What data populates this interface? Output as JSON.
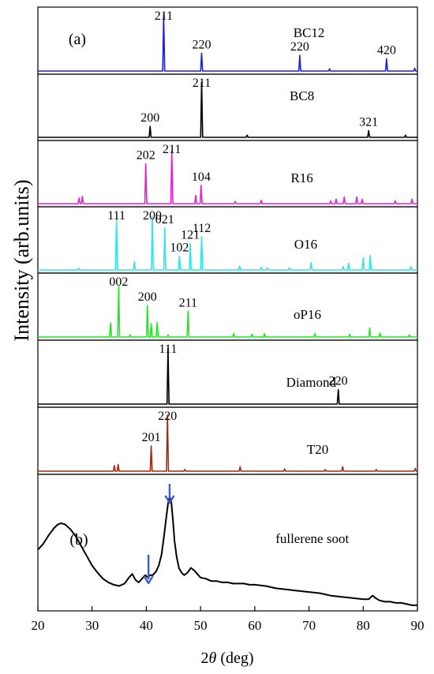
{
  "chart_data": {
    "type": "line",
    "xlabel": "2θ (deg)",
    "xlabel_prefix": "2",
    "xlabel_theta": "θ",
    "xlabel_suffix": " (deg)",
    "ylabel": "Intensity (arb.units)",
    "xlim": [
      20,
      90
    ],
    "xticks": [
      "20",
      "30",
      "40",
      "50",
      "60",
      "70",
      "80",
      "90"
    ],
    "panel_labels": [
      "(a)",
      "(b)"
    ],
    "series": [
      {
        "name": "BC12",
        "color": "#1f1fd6",
        "peaks": [
          [
            43.2,
            1.0
          ],
          [
            50.2,
            0.32
          ],
          [
            68.3,
            0.28
          ],
          [
            73.8,
            0.04
          ],
          [
            84.3,
            0.22
          ],
          [
            89.5,
            0.05
          ]
        ],
        "labels": [
          {
            "text": "211",
            "x": 43.2,
            "y": 1.0
          },
          {
            "text": "220",
            "x": 50.2,
            "y": 0.32
          },
          {
            "text": "220",
            "x": 68.3,
            "y": 0.28
          },
          {
            "text": "420",
            "x": 84.3,
            "y": 0.22
          }
        ]
      },
      {
        "name": "BC8",
        "color": "#000000",
        "peaks": [
          [
            40.7,
            0.2
          ],
          [
            50.2,
            1.0
          ],
          [
            58.6,
            0.04
          ],
          [
            81.0,
            0.12
          ],
          [
            87.8,
            0.04
          ]
        ],
        "labels": [
          {
            "text": "200",
            "x": 40.7,
            "y": 0.2
          },
          {
            "text": "211",
            "x": 50.2,
            "y": 1.0
          },
          {
            "text": "321",
            "x": 81.0,
            "y": 0.12
          }
        ]
      },
      {
        "name": "R16",
        "color": "#e81ed8",
        "peaks": [
          [
            27.6,
            0.1
          ],
          [
            28.2,
            0.13
          ],
          [
            39.9,
            0.72
          ],
          [
            44.7,
            0.96
          ],
          [
            49.1,
            0.15
          ],
          [
            50.1,
            0.33
          ],
          [
            56.4,
            0.04
          ],
          [
            61.2,
            0.06
          ],
          [
            74.0,
            0.05
          ],
          [
            75.0,
            0.08
          ],
          [
            76.5,
            0.12
          ],
          [
            78.8,
            0.12
          ],
          [
            79.8,
            0.08
          ],
          [
            85.9,
            0.05
          ],
          [
            89.0,
            0.08
          ]
        ],
        "labels": [
          {
            "text": "202",
            "x": 39.9,
            "y": 0.72
          },
          {
            "text": "211",
            "x": 44.7,
            "y": 0.96
          },
          {
            "text": "104",
            "x": 50.1,
            "y": 0.33
          }
        ]
      },
      {
        "name": "O16",
        "color": "#2ee6e6",
        "peaks": [
          [
            27.5,
            0.03
          ],
          [
            34.5,
            0.91
          ],
          [
            37.8,
            0.15
          ],
          [
            41.1,
            0.96
          ],
          [
            43.4,
            0.76
          ],
          [
            46.1,
            0.25
          ],
          [
            48.1,
            0.48
          ],
          [
            50.2,
            0.6
          ],
          [
            57.2,
            0.07
          ],
          [
            61.2,
            0.05
          ],
          [
            62.3,
            0.04
          ],
          [
            66.4,
            0.04
          ],
          [
            70.4,
            0.13
          ],
          [
            76.3,
            0.06
          ],
          [
            77.3,
            0.12
          ],
          [
            80.0,
            0.22
          ],
          [
            81.3,
            0.26
          ],
          [
            88.8,
            0.06
          ]
        ],
        "labels": [
          {
            "text": "111",
            "x": 34.5,
            "y": 0.91
          },
          {
            "text": "200",
            "x": 41.1,
            "y": 0.96
          },
          {
            "text": "021",
            "x": 43.4,
            "y": 0.76
          },
          {
            "text": "102",
            "x": 46.1,
            "y": 0.25
          },
          {
            "text": "121",
            "x": 48.1,
            "y": 0.48
          },
          {
            "text": "112",
            "x": 50.2,
            "y": 0.6
          }
        ]
      },
      {
        "name": "oP16",
        "color": "#1fe81f",
        "peaks": [
          [
            33.4,
            0.25
          ],
          [
            34.9,
            0.9
          ],
          [
            37.0,
            0.04
          ],
          [
            40.2,
            0.56
          ],
          [
            40.9,
            0.24
          ],
          [
            42.0,
            0.26
          ],
          [
            44.0,
            0.04
          ],
          [
            47.7,
            0.46
          ],
          [
            56.1,
            0.06
          ],
          [
            59.5,
            0.05
          ],
          [
            61.8,
            0.06
          ],
          [
            71.1,
            0.06
          ],
          [
            77.5,
            0.05
          ],
          [
            81.2,
            0.16
          ],
          [
            83.1,
            0.07
          ],
          [
            88.5,
            0.04
          ]
        ],
        "labels": [
          {
            "text": "002",
            "x": 34.9,
            "y": 0.9
          },
          {
            "text": "200",
            "x": 40.2,
            "y": 0.56
          },
          {
            "text": "211",
            "x": 47.7,
            "y": 0.46
          }
        ]
      },
      {
        "name": "Diamond",
        "color": "#000000",
        "peaks": [
          [
            44.0,
            1.0
          ],
          [
            75.4,
            0.26
          ]
        ],
        "labels": [
          {
            "text": "111",
            "x": 44.0,
            "y": 1.0
          },
          {
            "text": "220",
            "x": 75.4,
            "y": 0.26
          }
        ]
      },
      {
        "name": "T20",
        "color": "#a52a10",
        "peaks": [
          [
            34.1,
            0.1
          ],
          [
            34.8,
            0.12
          ],
          [
            40.9,
            0.45
          ],
          [
            43.9,
            1.0
          ],
          [
            47.1,
            0.03
          ],
          [
            57.3,
            0.08
          ],
          [
            65.5,
            0.04
          ],
          [
            73.0,
            0.03
          ],
          [
            76.2,
            0.08
          ],
          [
            82.4,
            0.03
          ],
          [
            89.6,
            0.05
          ]
        ],
        "labels": [
          {
            "text": "201",
            "x": 40.9,
            "y": 0.45
          },
          {
            "text": "220",
            "x": 43.9,
            "y": 1.0
          }
        ]
      }
    ],
    "experimental": {
      "name": "fullerene soot",
      "color": "#000000",
      "x": [
        20,
        21,
        22,
        23,
        23.7,
        24.3,
        25,
        26,
        27,
        28,
        29,
        30,
        31,
        32,
        33,
        34,
        35,
        36,
        36.8,
        37.4,
        38,
        38.6,
        39.2,
        39.8,
        40.3,
        40.7,
        41.2,
        41.8,
        42.3,
        42.8,
        43.2,
        43.6,
        44.0,
        44.3,
        44.6,
        44.9,
        45.2,
        45.6,
        46.0,
        46.5,
        47.0,
        47.6,
        48.2,
        48.8,
        49.4,
        50,
        51,
        52,
        53,
        54,
        55,
        56,
        57,
        58,
        59,
        60,
        62,
        64,
        66,
        68,
        70,
        72,
        74,
        76,
        78,
        80,
        81,
        81.7,
        82.3,
        83,
        84,
        85,
        86,
        87,
        88,
        89,
        90
      ],
      "y": [
        0.48,
        0.53,
        0.6,
        0.66,
        0.69,
        0.7,
        0.69,
        0.65,
        0.59,
        0.51,
        0.43,
        0.35,
        0.29,
        0.24,
        0.21,
        0.19,
        0.18,
        0.2,
        0.25,
        0.28,
        0.23,
        0.21,
        0.24,
        0.27,
        0.25,
        0.27,
        0.27,
        0.3,
        0.35,
        0.44,
        0.57,
        0.72,
        0.86,
        0.92,
        0.88,
        0.73,
        0.55,
        0.42,
        0.33,
        0.29,
        0.27,
        0.29,
        0.33,
        0.31,
        0.28,
        0.25,
        0.24,
        0.22,
        0.22,
        0.21,
        0.21,
        0.2,
        0.2,
        0.2,
        0.19,
        0.19,
        0.18,
        0.16,
        0.15,
        0.14,
        0.13,
        0.12,
        0.1,
        0.09,
        0.08,
        0.07,
        0.07,
        0.1,
        0.08,
        0.06,
        0.05,
        0.05,
        0.04,
        0.04,
        0.03,
        0.02,
        0.02
      ]
    },
    "arrows": [
      {
        "x": 40.4,
        "color": "#3a5ad0"
      },
      {
        "x": 44.3,
        "color": "#3a5ad0"
      }
    ]
  }
}
